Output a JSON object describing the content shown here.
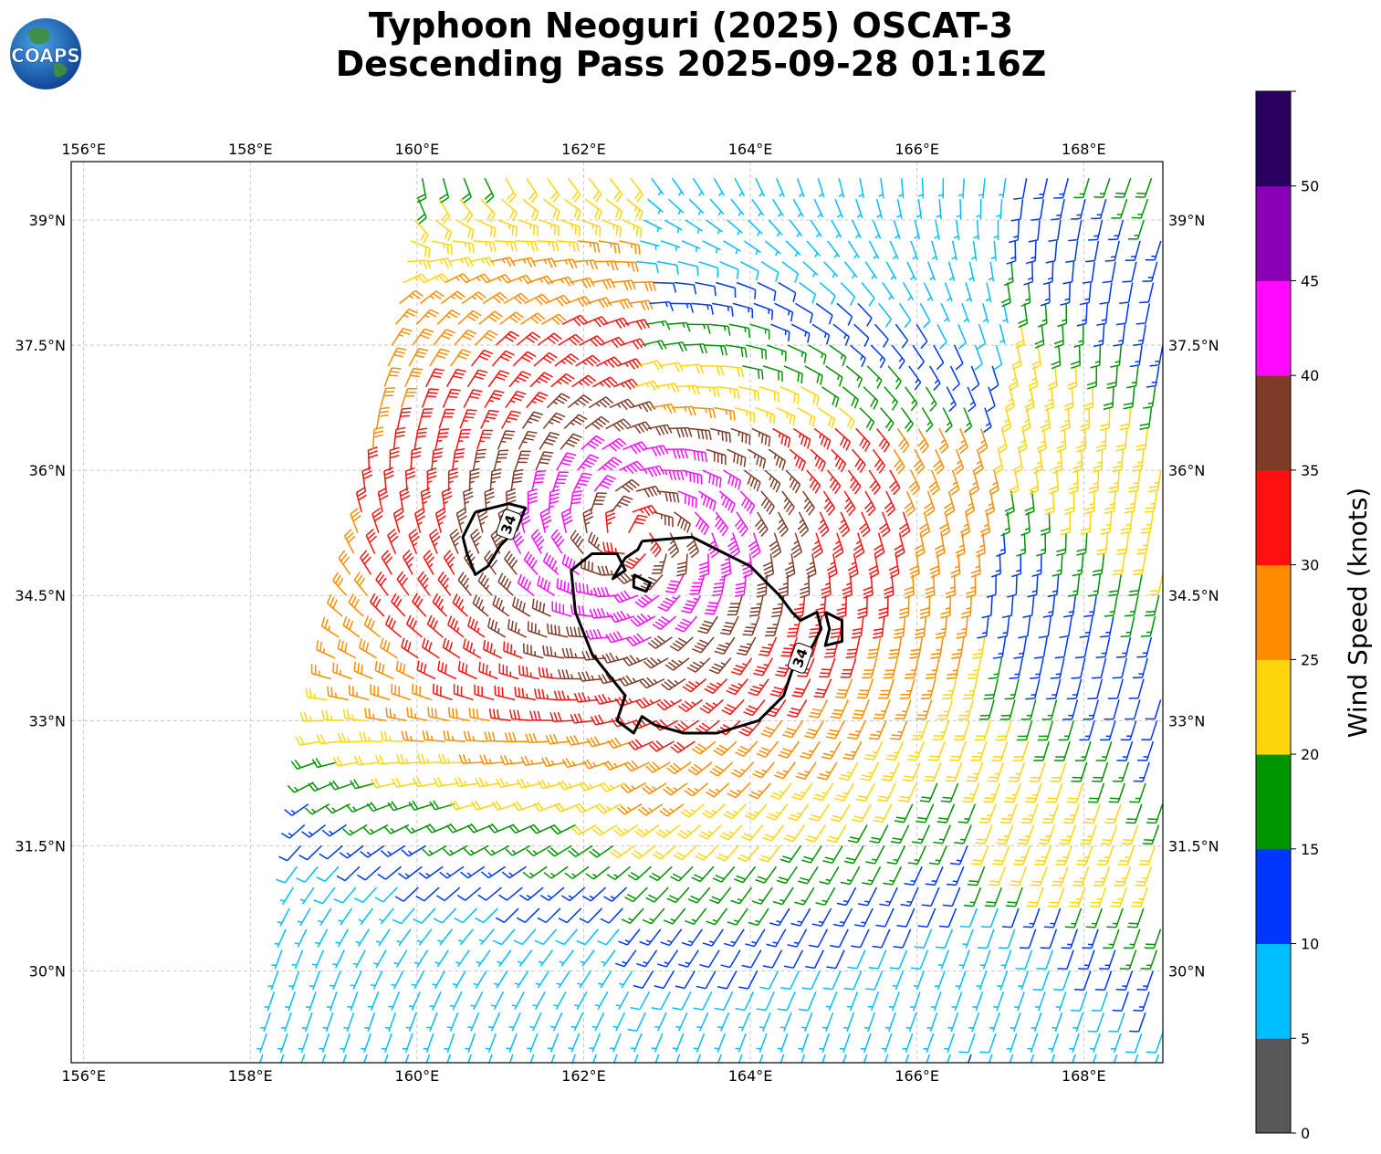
{
  "title": {
    "line1": "Typhoon Neoguri (2025) OSCAT-3",
    "line2": "Descending Pass 2025-09-28 01:16Z"
  },
  "logo": {
    "text": "COAPS"
  },
  "map": {
    "lon_range": [
      155.85,
      168.95
    ],
    "lat_range": [
      28.9,
      39.7
    ],
    "lon_ticks": [
      {
        "value": 156,
        "label": "156°E"
      },
      {
        "value": 158,
        "label": "158°E"
      },
      {
        "value": 160,
        "label": "160°E"
      },
      {
        "value": 162,
        "label": "162°E"
      },
      {
        "value": 164,
        "label": "164°E"
      },
      {
        "value": 166,
        "label": "166°E"
      },
      {
        "value": 168,
        "label": "168°E"
      }
    ],
    "lat_ticks": [
      {
        "value": 39,
        "label": "39°N"
      },
      {
        "value": 37.5,
        "label": "37.5°N"
      },
      {
        "value": 36,
        "label": "36°N"
      },
      {
        "value": 34.5,
        "label": "34.5°N"
      },
      {
        "value": 33,
        "label": "33°N"
      },
      {
        "value": 31.5,
        "label": "31.5°N"
      },
      {
        "value": 30,
        "label": "30°N"
      }
    ],
    "grid": true,
    "storm_center": [
      162.6,
      35.2
    ],
    "swath_left_edge": [
      [
        158.1,
        29.0
      ],
      [
        160.05,
        39.7
      ]
    ],
    "contour_34kt": {
      "level": "34",
      "main": [
        [
          162.7,
          35.15
        ],
        [
          163.3,
          35.2
        ],
        [
          163.6,
          35.05
        ],
        [
          164.0,
          34.85
        ],
        [
          164.2,
          34.65
        ],
        [
          164.35,
          34.5
        ],
        [
          164.5,
          34.3
        ],
        [
          164.6,
          34.2
        ],
        [
          164.8,
          34.3
        ],
        [
          164.85,
          34.1
        ],
        [
          164.7,
          33.8
        ],
        [
          164.5,
          33.6
        ],
        [
          164.4,
          33.3
        ],
        [
          164.1,
          33.0
        ],
        [
          163.6,
          32.85
        ],
        [
          163.2,
          32.85
        ],
        [
          162.85,
          32.95
        ],
        [
          162.7,
          33.05
        ],
        [
          162.6,
          32.85
        ],
        [
          162.4,
          33.0
        ],
        [
          162.5,
          33.3
        ],
        [
          162.1,
          33.8
        ],
        [
          161.9,
          34.3
        ],
        [
          161.85,
          34.8
        ],
        [
          162.1,
          35.0
        ],
        [
          162.4,
          35.0
        ],
        [
          162.5,
          34.8
        ],
        [
          162.35,
          34.7
        ],
        [
          162.5,
          34.95
        ],
        [
          162.65,
          35.05
        ],
        [
          162.7,
          35.15
        ]
      ],
      "small_sw": [
        [
          160.7,
          35.5
        ],
        [
          161.1,
          35.6
        ],
        [
          161.3,
          35.55
        ],
        [
          161.2,
          35.3
        ],
        [
          161.0,
          35.1
        ],
        [
          160.85,
          34.85
        ],
        [
          160.7,
          34.75
        ],
        [
          160.6,
          35.0
        ],
        [
          160.55,
          35.2
        ],
        [
          160.7,
          35.5
        ]
      ],
      "small_e": [
        [
          164.9,
          34.3
        ],
        [
          165.1,
          34.2
        ],
        [
          165.1,
          33.95
        ],
        [
          164.9,
          33.9
        ],
        [
          164.95,
          34.1
        ],
        [
          164.9,
          34.3
        ]
      ],
      "small_hole": [
        [
          162.6,
          34.75
        ],
        [
          162.8,
          34.65
        ],
        [
          162.75,
          34.55
        ],
        [
          162.6,
          34.6
        ],
        [
          162.6,
          34.75
        ]
      ],
      "labels": [
        {
          "text": "34",
          "lon": 161.1,
          "lat": 35.35,
          "angle": -70
        },
        {
          "text": "34",
          "lon": 164.6,
          "lat": 33.75,
          "angle": -70
        }
      ]
    }
  },
  "colorbar": {
    "label": "Wind Speed (knots)",
    "bins": [
      {
        "from": 0,
        "to": 5,
        "color": "#585858"
      },
      {
        "from": 5,
        "to": 10,
        "color": "#00bfff"
      },
      {
        "from": 10,
        "to": 15,
        "color": "#0036ff"
      },
      {
        "from": 15,
        "to": 20,
        "color": "#009400"
      },
      {
        "from": 20,
        "to": 25,
        "color": "#ffd60e"
      },
      {
        "from": 25,
        "to": 30,
        "color": "#ff8c00"
      },
      {
        "from": 30,
        "to": 35,
        "color": "#ff0f0f"
      },
      {
        "from": 35,
        "to": 40,
        "color": "#7e3b28"
      },
      {
        "from": 40,
        "to": 45,
        "color": "#ff0aff"
      },
      {
        "from": 45,
        "to": 50,
        "color": "#8a00b6"
      },
      {
        "from": 50,
        "to": 55,
        "color": "#2a0060"
      }
    ],
    "tick_labels": [
      "0",
      "5",
      "10",
      "15",
      "20",
      "25",
      "30",
      "35",
      "40",
      "45",
      "50"
    ]
  }
}
